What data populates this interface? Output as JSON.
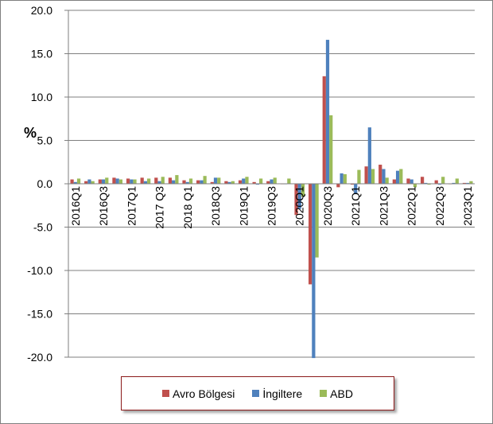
{
  "chart_data": {
    "type": "bar",
    "title": "",
    "xlabel": "",
    "ylabel": "%",
    "ylim": [
      -20,
      20
    ],
    "yticks": [
      "20.0",
      "15.0",
      "10.0",
      "5.0",
      "0.0",
      "-5.0",
      "-10.0",
      "-15.0",
      "-20.0"
    ],
    "grid": true,
    "legend_position": "bottom",
    "categories": [
      "2016Q1",
      "2016Q2",
      "2016Q3",
      "2016Q4",
      "2017Q1",
      "2017Q2",
      "2017 Q3",
      "2017Q4",
      "2018 Q1",
      "2018Q2",
      "2018Q3",
      "2018Q4",
      "2019Q1",
      "2019Q2",
      "2019Q3",
      "2019Q4",
      "2020Q1",
      "2020Q2",
      "2020Q3",
      "2020Q4",
      "2021Q1",
      "2021Q2",
      "2021Q3",
      "2021Q4",
      "2022Q1",
      "2022Q2",
      "2022Q3",
      "2022Q4",
      "2023Q1"
    ],
    "tick_labels": [
      "2016Q1",
      "",
      "2016Q3",
      "",
      "2017Q1",
      "",
      "2017 Q3",
      "",
      "2018 Q1",
      "",
      "2018Q3",
      "",
      "2019Q1",
      "",
      "2019Q3",
      "",
      "2020Q1",
      "",
      "2020Q3",
      "",
      "2021Q1",
      "",
      "2021Q3",
      "",
      "2022Q1",
      "",
      "2022Q3",
      "",
      "2023Q1"
    ],
    "series": [
      {
        "name": "Avro Bölgesi",
        "color": "#c0504d",
        "values": [
          0.5,
          0.3,
          0.5,
          0.7,
          0.6,
          0.7,
          0.7,
          0.7,
          0.4,
          0.4,
          0.2,
          0.3,
          0.4,
          0.2,
          0.3,
          0.0,
          -3.6,
          -11.6,
          12.4,
          -0.4,
          -0.1,
          2.0,
          2.2,
          0.5,
          0.6,
          0.8,
          0.4,
          0.0,
          0.1
        ]
      },
      {
        "name": "İngiltere",
        "color": "#4f81bd",
        "values": [
          0.2,
          0.5,
          0.5,
          0.6,
          0.5,
          0.3,
          0.3,
          0.4,
          0.2,
          0.4,
          0.7,
          0.2,
          0.6,
          -0.1,
          0.5,
          0.0,
          -2.9,
          -20.1,
          16.6,
          1.2,
          -1.2,
          6.5,
          1.7,
          1.5,
          0.5,
          0.1,
          -0.1,
          0.1,
          0.1
        ]
      },
      {
        "name": "ABD",
        "color": "#9bbb59",
        "values": [
          0.6,
          0.3,
          0.7,
          0.5,
          0.5,
          0.6,
          0.8,
          1.0,
          0.6,
          0.9,
          0.7,
          0.3,
          0.8,
          0.6,
          0.7,
          0.6,
          -1.5,
          -8.5,
          7.9,
          1.1,
          1.6,
          1.7,
          0.7,
          1.7,
          -0.4,
          -0.1,
          0.8,
          0.6,
          0.3
        ]
      }
    ]
  }
}
